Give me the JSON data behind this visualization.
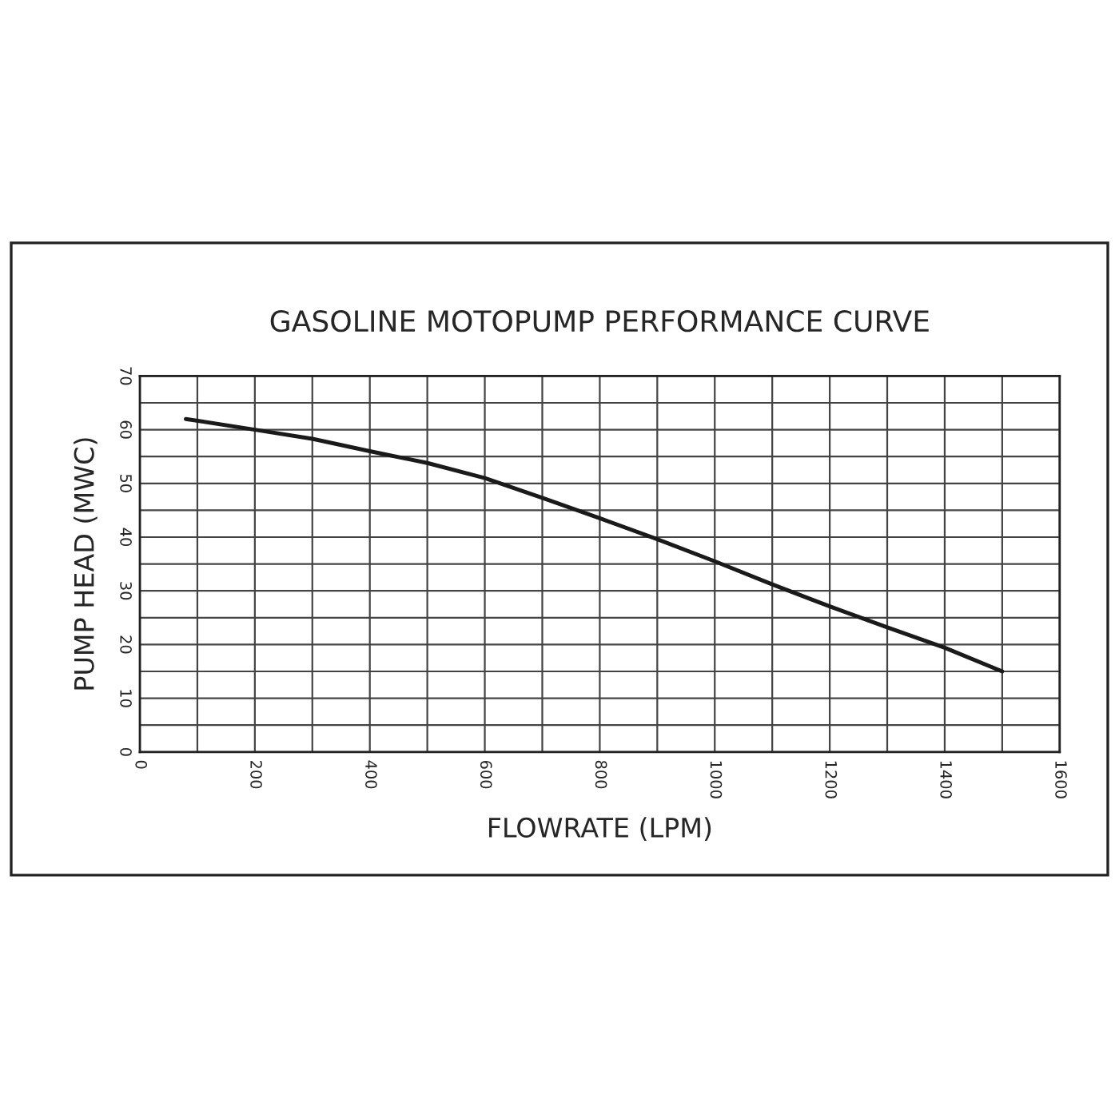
{
  "chart_data": {
    "type": "line",
    "title": "GASOLINE MOTOPUMP PERFORMANCE CURVE",
    "xlabel": "FLOWRATE (LPM)",
    "ylabel": "PUMP HEAD (MWC)",
    "x": [
      80,
      200,
      300,
      400,
      500,
      600,
      700,
      800,
      900,
      1000,
      1100,
      1200,
      1300,
      1400,
      1500
    ],
    "series": [
      {
        "color": "#1a1a1a",
        "values": [
          62,
          60,
          58.3,
          56,
          53.8,
          51,
          47.3,
          43.5,
          39.6,
          35.5,
          31.2,
          27.1,
          23.2,
          19.4,
          15
        ]
      }
    ],
    "xlim": [
      0,
      1600
    ],
    "ylim": [
      0,
      70
    ],
    "xticks": [
      0,
      {
        "value": 100,
        "label": null
      },
      200,
      {
        "value": 300,
        "label": null
      },
      400,
      {
        "value": 500,
        "label": null
      },
      600,
      {
        "value": 700,
        "label": null
      },
      800,
      {
        "value": 900,
        "label": null
      },
      1000,
      {
        "value": 1100,
        "label": null
      },
      1200,
      {
        "value": 1300,
        "label": null
      },
      1400,
      {
        "value": 1500,
        "label": null
      },
      1600
    ],
    "yticks": [
      0,
      {
        "value": 5,
        "label": null
      },
      10,
      {
        "value": 15,
        "label": null
      },
      20,
      {
        "value": 25,
        "label": null
      },
      30,
      {
        "value": 35,
        "label": null
      },
      40,
      {
        "value": 45,
        "label": null
      },
      50,
      {
        "value": 55,
        "label": null
      },
      60,
      {
        "value": 65,
        "label": null
      },
      70
    ],
    "grid": true,
    "marker": "none",
    "line_style": "solid"
  }
}
